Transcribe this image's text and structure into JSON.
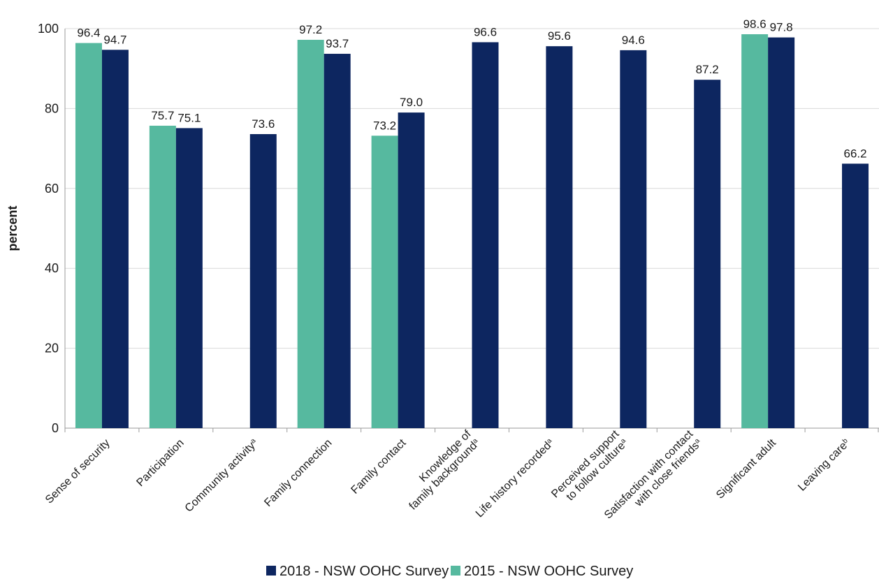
{
  "chart_data": {
    "type": "bar",
    "ylabel": "percent",
    "ylim": [
      0,
      100
    ],
    "yticks": [
      0,
      20,
      40,
      60,
      80,
      100
    ],
    "grid": true,
    "legend_position": "bottom",
    "categories": [
      {
        "lines": [
          "Sense of security"
        ],
        "sup": ""
      },
      {
        "lines": [
          "Participation"
        ],
        "sup": ""
      },
      {
        "lines": [
          "Community activity"
        ],
        "sup": "a"
      },
      {
        "lines": [
          "Family connection"
        ],
        "sup": ""
      },
      {
        "lines": [
          "Family contact"
        ],
        "sup": ""
      },
      {
        "lines": [
          "Knowledge of",
          "family background"
        ],
        "sup": "a"
      },
      {
        "lines": [
          "Life history recorded"
        ],
        "sup": "a"
      },
      {
        "lines": [
          "Perceived support",
          "to follow culture"
        ],
        "sup": "a"
      },
      {
        "lines": [
          "Satisfaction with contact",
          "with close friends"
        ],
        "sup": "a"
      },
      {
        "lines": [
          "Significant adult"
        ],
        "sup": ""
      },
      {
        "lines": [
          "Leaving care"
        ],
        "sup": "b"
      }
    ],
    "series": [
      {
        "name": "2015 - NSW OOHC Survey",
        "color": "#56b99f",
        "values": [
          96.4,
          75.7,
          null,
          97.2,
          73.2,
          null,
          null,
          null,
          null,
          98.6,
          null
        ]
      },
      {
        "name": "2018 - NSW OOHC Survey",
        "color": "#0d2660",
        "values": [
          94.7,
          75.1,
          73.6,
          93.7,
          79.0,
          96.6,
          95.6,
          94.6,
          87.2,
          97.8,
          66.2
        ]
      }
    ],
    "legend_order": [
      "2018 - NSW OOHC Survey",
      "2015 - NSW OOHC Survey"
    ]
  }
}
